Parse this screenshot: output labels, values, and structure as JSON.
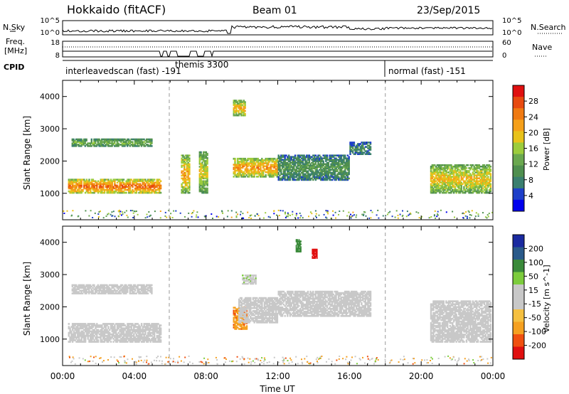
{
  "header": {
    "radar": "Hokkaido (fitACF)",
    "beam": "Beam 01",
    "date": "23/Sep/2015"
  },
  "strips": {
    "nsky_label": "N.Sky",
    "nsearch_label": "N.Search",
    "freq_label": "Freq.",
    "freq_unit": "[MHz]",
    "nave_label": "Nave",
    "cpid_label": "CPID",
    "noise_left_ticks": [
      "10^5",
      "10^0"
    ],
    "noise_right_ticks": [
      "10^5",
      "10^0"
    ],
    "freq_left_ticks": [
      "18",
      "8"
    ],
    "freq_right_ticks": [
      "60",
      "0"
    ]
  },
  "cpid_modes": [
    {
      "label": "interleavedscan (fast) -191",
      "start_hour": 0,
      "end_hour": 18
    },
    {
      "label": "themis 3300",
      "start_hour": 6.0,
      "end_hour": 9.0
    },
    {
      "label": "normal (fast) -151",
      "start_hour": 18,
      "end_hour": 24
    }
  ],
  "colors": {
    "power_scale": [
      "#0000ee",
      "#1e3fc9",
      "#3a7f6f",
      "#4f8f4f",
      "#6aa84f",
      "#9ccc3c",
      "#e8c21a",
      "#f5a01a",
      "#f07a12",
      "#e84a10",
      "#e01010"
    ],
    "velocity_scale": [
      "#e01010",
      "#f05010",
      "#f5a020",
      "#f5c040",
      "#c8c8c8",
      "#c8c8c8",
      "#7ccc3c",
      "#3a8a3a",
      "#2a5a8a",
      "#1a2aa0"
    ],
    "ground_scatter": "#c8c8c8"
  },
  "chart_data": [
    {
      "type": "heatmap",
      "title": "Power",
      "xlabel": "Time UT",
      "ylabel": "Slant Range [km]",
      "colorbar_label": "Power [dB]",
      "colorbar_ticks": [
        "28",
        "24",
        "20",
        "16",
        "12",
        "8",
        "4"
      ],
      "xlim": [
        0,
        24
      ],
      "ylim": [
        180,
        4500
      ],
      "x_ticks": [
        "00:00",
        "04:00",
        "08:00",
        "12:00",
        "16:00",
        "20:00",
        "00:00"
      ],
      "y_ticks": [
        "4000",
        "3000",
        "2000",
        "1000"
      ],
      "regions": [
        {
          "t0": 0.3,
          "t1": 5.5,
          "r0": 1000,
          "r1": 1450,
          "power": 27
        },
        {
          "t0": 0.5,
          "t1": 5.0,
          "r0": 2450,
          "r1": 2700,
          "power": 14
        },
        {
          "t0": 6.6,
          "t1": 7.1,
          "r0": 1000,
          "r1": 2200,
          "power": 22
        },
        {
          "t0": 7.6,
          "t1": 8.1,
          "r0": 1000,
          "r1": 2300,
          "power": 18
        },
        {
          "t0": 9.5,
          "t1": 12.0,
          "r0": 1500,
          "r1": 2100,
          "power": 24
        },
        {
          "t0": 9.5,
          "t1": 10.2,
          "r0": 3400,
          "r1": 3900,
          "power": 22
        },
        {
          "t0": 12.0,
          "t1": 16.0,
          "r0": 1400,
          "r1": 2200,
          "power": 10
        },
        {
          "t0": 16.0,
          "t1": 17.2,
          "r0": 2200,
          "r1": 2600,
          "power": 8
        },
        {
          "t0": 20.5,
          "t1": 23.9,
          "r0": 1000,
          "r1": 1900,
          "power": 20
        }
      ]
    },
    {
      "type": "heatmap",
      "title": "Velocity",
      "xlabel": "Time UT",
      "ylabel": "Slant Range [km]",
      "colorbar_label": "Velocity [m s^-1]",
      "colorbar_ticks": [
        "200",
        "100",
        "50",
        "15",
        "-15",
        "-50",
        "-100",
        "-200"
      ],
      "xlim": [
        0,
        24
      ],
      "ylim": [
        180,
        4500
      ],
      "x_ticks": [
        "00:00",
        "04:00",
        "08:00",
        "12:00",
        "16:00",
        "20:00",
        "00:00"
      ],
      "y_ticks": [
        "4000",
        "3000",
        "2000",
        "1000"
      ],
      "regions": [
        {
          "t0": 0.3,
          "t1": 5.5,
          "r0": 900,
          "r1": 1500,
          "velocity": 0
        },
        {
          "t0": 0.5,
          "t1": 5.0,
          "r0": 2400,
          "r1": 2700,
          "velocity": 0
        },
        {
          "t0": 9.5,
          "t1": 10.3,
          "r0": 1300,
          "r1": 2000,
          "velocity": -40
        },
        {
          "t0": 9.8,
          "t1": 12.0,
          "r0": 1500,
          "r1": 2300,
          "velocity": 0
        },
        {
          "t0": 10.0,
          "t1": 10.8,
          "r0": 2700,
          "r1": 3000,
          "velocity": 40
        },
        {
          "t0": 12.0,
          "t1": 17.2,
          "r0": 1700,
          "r1": 2500,
          "velocity": 0
        },
        {
          "t0": 13.0,
          "t1": 13.3,
          "r0": 3700,
          "r1": 4100,
          "velocity": 180
        },
        {
          "t0": 13.9,
          "t1": 14.2,
          "r0": 3500,
          "r1": 3800,
          "velocity": -200
        },
        {
          "t0": 20.5,
          "t1": 23.9,
          "r0": 900,
          "r1": 2200,
          "velocity": 0
        }
      ]
    }
  ]
}
